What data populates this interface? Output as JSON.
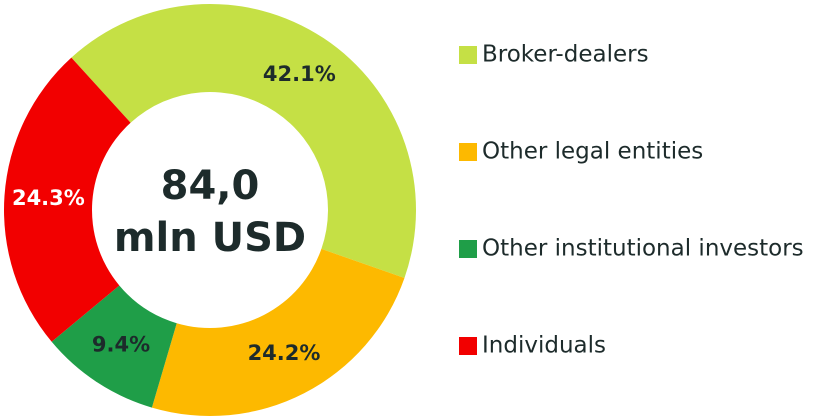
{
  "chart_data": {
    "type": "donut",
    "center_label": [
      "84,0",
      "mln USD"
    ],
    "categories": [
      "Broker-dealers",
      "Other legal entities",
      "Other institutional investors",
      "Individuals"
    ],
    "values": [
      42.1,
      24.2,
      9.4,
      24.3
    ],
    "value_labels": [
      "42.1%",
      "24.2%",
      "9.4%",
      "24.3%"
    ],
    "colors": [
      "#c5e045",
      "#fdb900",
      "#1f9e48",
      "#f20000"
    ],
    "legend": "right"
  }
}
